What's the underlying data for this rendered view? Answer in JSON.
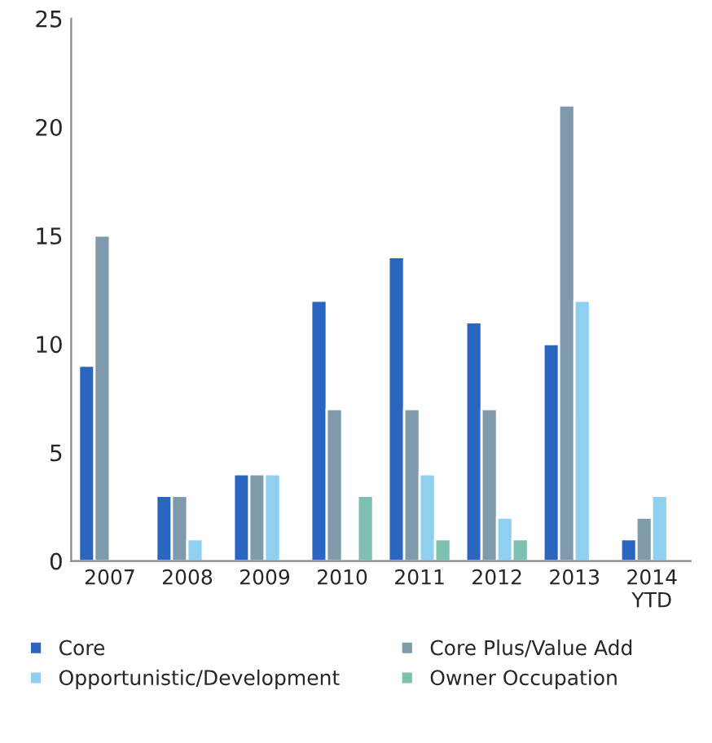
{
  "chart_data": {
    "type": "bar",
    "categories": [
      "2007",
      "2008",
      "2009",
      "2010",
      "2011",
      "2012",
      "2013",
      "2014\nYTD"
    ],
    "series": [
      {
        "name": "Core",
        "color": "#2a65c0",
        "values": [
          9,
          3,
          4,
          12,
          14,
          11,
          10,
          1
        ]
      },
      {
        "name": "Core Plus/Value Add",
        "color": "#7f9aab",
        "values": [
          15,
          3,
          4,
          7,
          7,
          7,
          21,
          2
        ]
      },
      {
        "name": "Opportunistic/Development",
        "color": "#8fd0f0",
        "values": [
          null,
          1,
          4,
          null,
          4,
          2,
          12,
          3
        ]
      },
      {
        "name": "Owner Occupation",
        "color": "#7dbfb0",
        "values": [
          null,
          null,
          null,
          3,
          1,
          1,
          null,
          null
        ]
      }
    ],
    "ylim": [
      0,
      25
    ],
    "yticks": [
      0,
      5,
      10,
      15,
      20,
      25
    ],
    "grid": false,
    "legend": "bottom"
  }
}
